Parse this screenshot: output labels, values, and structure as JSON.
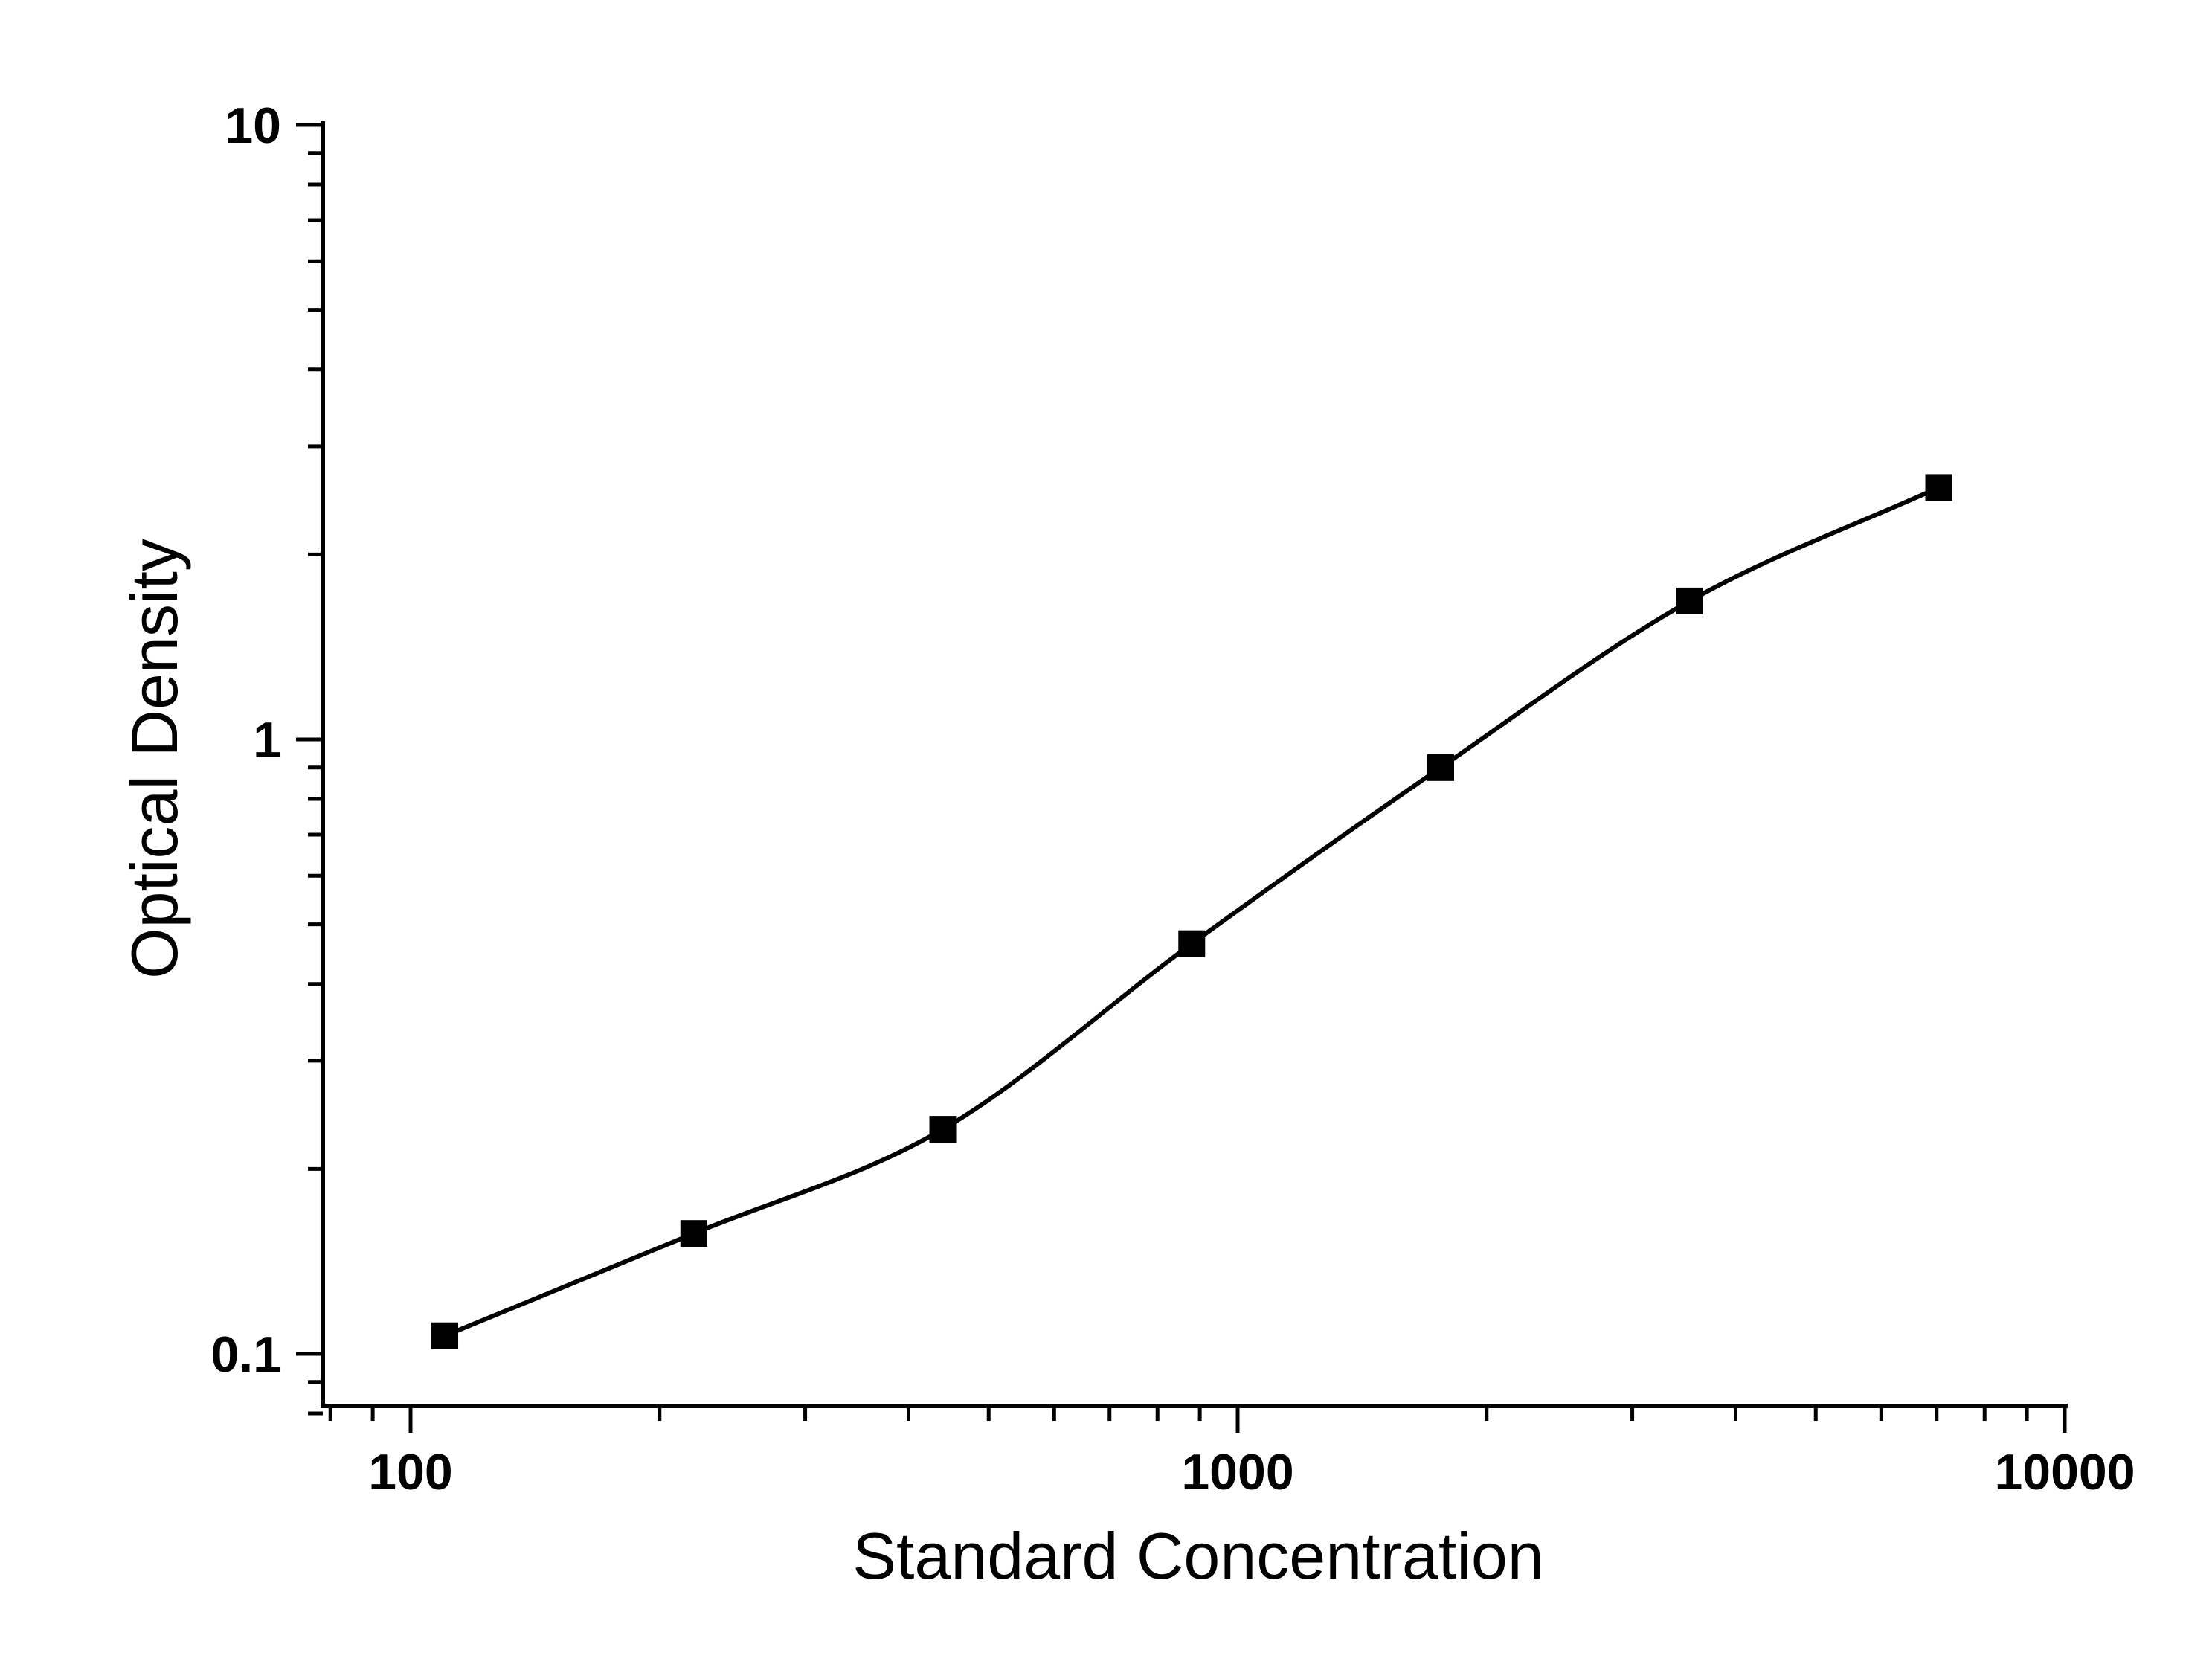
{
  "chart_data": {
    "type": "scatter",
    "title": "",
    "xlabel": "Standard Concentration",
    "ylabel": "Optical Density",
    "x_scale": "log",
    "y_scale": "log",
    "xlim": [
      80,
      10000
    ],
    "ylim": [
      0.08,
      10
    ],
    "x_ticks": [
      {
        "value": 100,
        "label": "100"
      },
      {
        "value": 1000,
        "label": "1000"
      },
      {
        "value": 10000,
        "label": "10000"
      }
    ],
    "y_ticks": [
      {
        "value": 0.1,
        "label": "0.1"
      },
      {
        "value": 1,
        "label": "1"
      },
      {
        "value": 10,
        "label": "10"
      }
    ],
    "grid": false,
    "legend": "none",
    "series": [
      {
        "marker": "square",
        "color": "#000000",
        "points": [
          {
            "x": 110,
            "y": 0.107
          },
          {
            "x": 220,
            "y": 0.157
          },
          {
            "x": 440,
            "y": 0.232
          },
          {
            "x": 880,
            "y": 0.465
          },
          {
            "x": 1760,
            "y": 0.9
          },
          {
            "x": 3520,
            "y": 1.68
          },
          {
            "x": 7040,
            "y": 2.57
          }
        ],
        "fit_curve": {
          "type": "4-parameter logistic",
          "color": "#000000"
        }
      }
    ]
  }
}
